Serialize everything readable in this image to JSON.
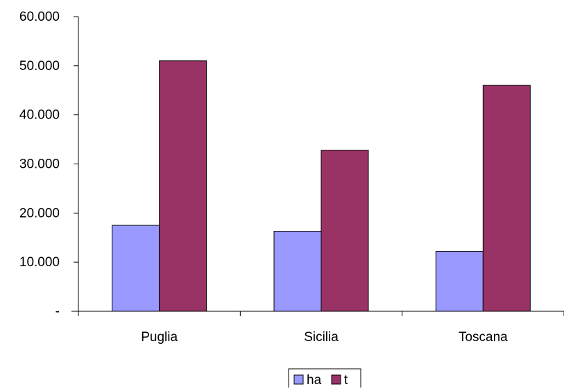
{
  "chart_data": {
    "type": "bar",
    "title": "",
    "xlabel": "",
    "ylabel": "",
    "categories": [
      "Puglia",
      "Sicilia",
      "Toscana"
    ],
    "series": [
      {
        "name": "ha",
        "values": [
          17500,
          16300,
          12200
        ],
        "color": "#9999ff"
      },
      {
        "name": "t",
        "values": [
          51000,
          32800,
          46000
        ],
        "color": "#993366"
      }
    ],
    "ylim": [
      0,
      60000
    ],
    "yticks": [
      0,
      10000,
      20000,
      30000,
      40000,
      50000,
      60000
    ],
    "ytick_labels": [
      "-",
      "10.000",
      "20.000",
      "30.000",
      "40.000",
      "50.000",
      "60.000"
    ],
    "grid": false,
    "legend": "bottom-center"
  }
}
